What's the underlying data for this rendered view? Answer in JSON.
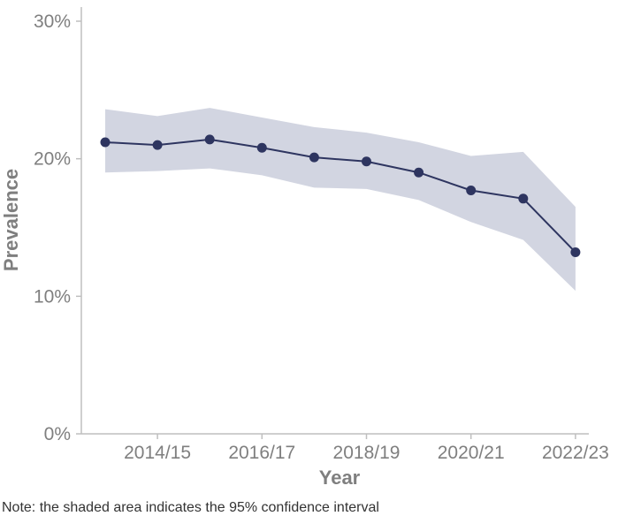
{
  "chart_data": {
    "type": "line",
    "title": "",
    "xlabel": "Year",
    "ylabel": "Prevalence",
    "ylim": [
      0,
      30
    ],
    "y_ticks": [
      "0%",
      "10%",
      "20%",
      "30%"
    ],
    "x_tick_labels": [
      "2014/15",
      "2016/17",
      "2018/19",
      "2020/21",
      "2022/23"
    ],
    "categories": [
      "2013/14",
      "2014/15",
      "2015/16",
      "2016/17",
      "2017/18",
      "2018/19",
      "2019/20",
      "2020/21",
      "2021/22",
      "2022/23"
    ],
    "series": [
      {
        "values": [
          21.2,
          21.0,
          21.4,
          20.8,
          20.1,
          19.8,
          19.0,
          17.7,
          17.1,
          13.2
        ],
        "ci_lower": [
          19.0,
          19.1,
          19.3,
          18.8,
          17.9,
          17.8,
          17.0,
          15.4,
          14.1,
          10.4
        ],
        "ci_upper": [
          23.6,
          23.1,
          23.7,
          23.0,
          22.3,
          21.9,
          21.2,
          20.2,
          20.5,
          16.5
        ]
      }
    ],
    "note": "Note: the shaded area indicates the 95% confidence interval",
    "grid": false,
    "legend": "none",
    "colors": {
      "line": "#2e3560",
      "band": "#d2d5e1",
      "axis": "#bfbfbf",
      "text": "#7f7f7f"
    }
  }
}
